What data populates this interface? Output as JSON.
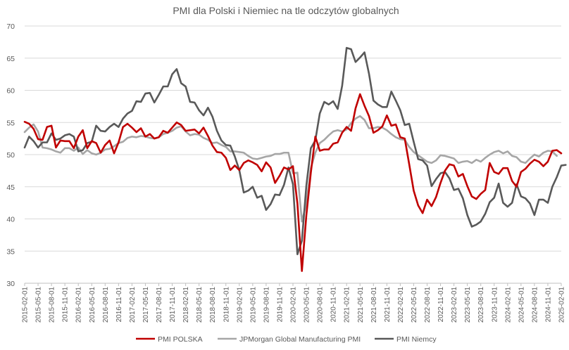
{
  "chart_data": {
    "type": "line",
    "title": "PMI dla Polski i Niemiec na tle odczytów globalnych",
    "xlabel": "",
    "ylabel": "",
    "ylim": [
      30,
      70
    ],
    "yticks": [
      30,
      35,
      40,
      45,
      50,
      55,
      60,
      65,
      70
    ],
    "grid": "horizontal",
    "legend_position": "bottom",
    "x_start": "2015-02-01",
    "x_end": "2025-05-01",
    "x_tick_labels": [
      "2015-02-01",
      "2015-05-01",
      "2015-08-01",
      "2015-11-01",
      "2016-02-01",
      "2016-05-01",
      "2016-08-01",
      "2016-11-01",
      "2017-02-01",
      "2017-05-01",
      "2017-08-01",
      "2017-11-01",
      "2018-02-01",
      "2018-05-01",
      "2018-08-01",
      "2018-11-01",
      "2019-02-01",
      "2019-05-01",
      "2019-08-01",
      "2019-11-01",
      "2020-02-01",
      "2020-05-01",
      "2020-08-01",
      "2020-11-01",
      "2021-02-01",
      "2021-05-01",
      "2021-08-01",
      "2021-11-01",
      "2022-02-01",
      "2022-05-01",
      "2022-08-01",
      "2022-11-01",
      "2023-02-01",
      "2023-05-01",
      "2023-08-01",
      "2023-11-01",
      "2024-02-01",
      "2024-05-01",
      "2024-08-01",
      "2024-11-01",
      "2025-02-01",
      "2025-05-01"
    ],
    "series": [
      {
        "name": "PMI POLSKA",
        "color": "#c00000",
        "values": [
          55.1,
          54.8,
          54.0,
          52.4,
          52.3,
          54.3,
          54.5,
          51.1,
          52.2,
          52.1,
          52.1,
          51.0,
          52.8,
          53.8,
          51.0,
          52.1,
          51.8,
          50.3,
          51.5,
          52.2,
          50.2,
          51.9,
          54.3,
          54.8,
          54.2,
          53.5,
          54.1,
          52.8,
          53.2,
          52.5,
          52.7,
          53.7,
          53.4,
          54.2,
          55.0,
          54.6,
          53.7,
          53.8,
          53.9,
          53.3,
          54.2,
          52.9,
          51.4,
          50.4,
          50.3,
          49.5,
          47.6,
          48.3,
          47.6,
          48.7,
          49.1,
          48.8,
          48.4,
          47.4,
          48.8,
          48.0,
          45.6,
          46.7,
          48.0,
          47.7,
          48.2,
          42.4,
          31.9,
          40.6,
          47.2,
          52.8,
          50.6,
          50.8,
          50.8,
          51.7,
          51.9,
          53.4,
          54.3,
          53.7,
          57.2,
          59.4,
          57.6,
          56.0,
          53.4,
          53.8,
          54.4,
          56.1,
          54.5,
          54.7,
          52.7,
          52.5,
          48.5,
          44.4,
          42.1,
          40.9,
          43.0,
          42.0,
          43.4,
          45.6,
          47.5,
          48.5,
          48.3,
          46.6,
          47.0,
          45.1,
          43.5,
          43.1,
          43.9,
          44.5,
          48.7,
          47.3,
          47.0,
          47.9,
          47.9,
          45.9,
          45.0,
          47.3,
          47.8,
          48.6,
          49.2,
          48.9,
          48.2,
          48.9,
          50.6,
          50.7,
          50.2
        ],
        "label_every_point": false
      },
      {
        "name": "JPMorgan Global Manufacturing PMI",
        "color": "#a6a6a6",
        "values": [
          53.5,
          54.2,
          54.7,
          53.6,
          51.1,
          51.0,
          50.8,
          50.5,
          50.3,
          51.0,
          51.0,
          50.6,
          51.1,
          50.1,
          50.7,
          50.2,
          50.0,
          50.3,
          50.8,
          50.9,
          51.3,
          51.8,
          52.0,
          52.6,
          52.8,
          52.7,
          52.9,
          52.8,
          52.6,
          52.5,
          52.7,
          53.2,
          53.4,
          53.7,
          54.2,
          54.4,
          53.6,
          53.0,
          53.2,
          53.1,
          52.6,
          52.3,
          51.8,
          51.9,
          51.5,
          51.2,
          50.5,
          50.5,
          50.4,
          50.3,
          49.8,
          49.4,
          49.3,
          49.5,
          49.7,
          49.8,
          50.1,
          50.1,
          50.3,
          50.3,
          47.1,
          47.2,
          39.6,
          42.4,
          47.9,
          50.3,
          51.8,
          52.3,
          53.0,
          53.6,
          53.8,
          53.6,
          53.9,
          54.9,
          55.6,
          56.0,
          55.4,
          54.1,
          54.1,
          54.3,
          54.2,
          53.8,
          53.2,
          52.7,
          52.4,
          52.3,
          51.2,
          50.4,
          49.9,
          49.4,
          48.9,
          48.7,
          49.1,
          49.9,
          49.8,
          49.6,
          49.4,
          48.7,
          48.9,
          49.0,
          48.7,
          49.2,
          48.9,
          49.5,
          50.0,
          50.4,
          50.6,
          50.2,
          50.5,
          49.8,
          49.6,
          48.9,
          48.7,
          49.4,
          50.0,
          49.7,
          50.3,
          50.6,
          50.5,
          49.8
        ],
        "label_every_point": false
      },
      {
        "name": "PMI Niemcy",
        "color": "#595959",
        "values": [
          51.1,
          52.8,
          52.1,
          51.1,
          51.9,
          51.9,
          53.3,
          52.3,
          52.5,
          53.0,
          53.2,
          52.8,
          50.5,
          50.7,
          51.8,
          52.0,
          54.5,
          53.7,
          53.6,
          54.3,
          54.8,
          54.3,
          55.6,
          56.4,
          56.8,
          58.3,
          58.2,
          59.5,
          59.6,
          58.1,
          59.3,
          60.6,
          60.6,
          62.5,
          63.3,
          61.1,
          60.6,
          58.2,
          58.1,
          56.9,
          56.1,
          57.3,
          55.9,
          53.7,
          52.2,
          51.5,
          51.4,
          49.7,
          47.6,
          44.1,
          44.4,
          45.0,
          43.3,
          43.6,
          41.4,
          42.3,
          43.8,
          43.7,
          45.3,
          48.0,
          45.4,
          34.5,
          36.6,
          45.2,
          51.0,
          52.2,
          56.4,
          58.2,
          57.8,
          58.3,
          57.1,
          60.7,
          66.6,
          66.4,
          64.4,
          65.1,
          65.9,
          62.6,
          58.4,
          57.8,
          57.4,
          57.4,
          59.8,
          58.4,
          56.9,
          54.6,
          54.8,
          52.0,
          49.3,
          49.1,
          48.3,
          45.1,
          46.2,
          47.1,
          47.3,
          46.3,
          44.5,
          44.7,
          43.2,
          40.6,
          38.8,
          39.1,
          39.6,
          40.8,
          42.6,
          43.3,
          45.5,
          42.5,
          41.9,
          42.5,
          45.4,
          43.5,
          43.2,
          42.4,
          40.6,
          43.0,
          43.0,
          42.5,
          45.0,
          46.5,
          48.3,
          48.4
        ],
        "label_every_point": false
      }
    ]
  }
}
